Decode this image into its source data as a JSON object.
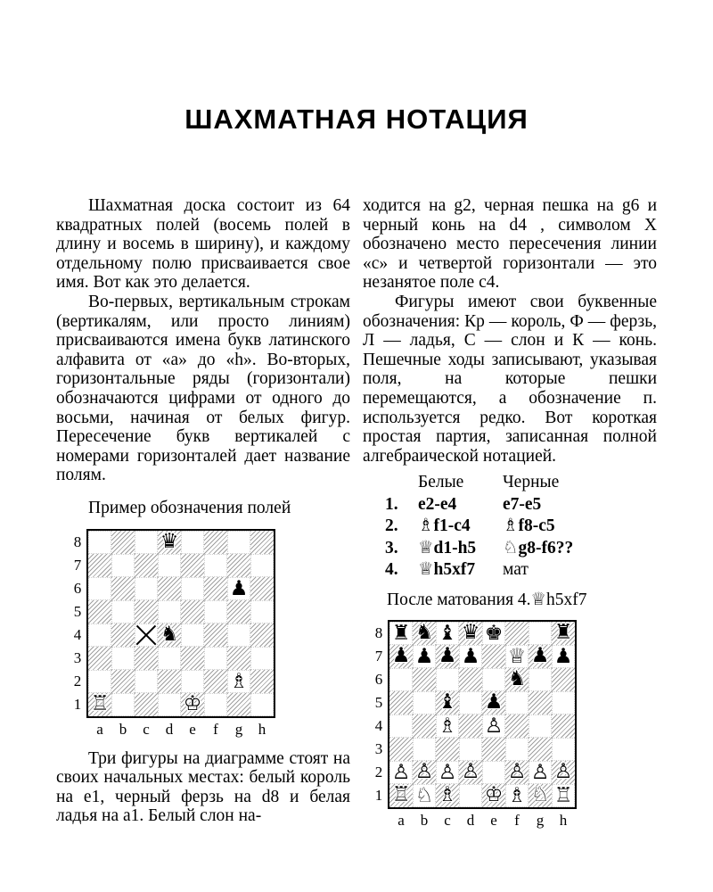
{
  "title": "ШАХМАТНАЯ НОТАЦИЯ",
  "left_column": {
    "para1": "Шахматная доска состоит из 64 квадратных полей (восемь полей в длину и восемь в ширину), и каждому отдельному полю присваивается свое имя. Вот как это делается.",
    "para2": "Во-первых, вертикальным строкам (вертикалям, или просто линиям) присваиваются имена букв латинского алфавита от «a» до «h». Во-вторых, горизонтальные ряды (горизонтали) обозначаются цифрами от одного до восьми, начиная от белых фигур. Пересечение букв вертикалей с номерами горизонталей дает название полям.",
    "diagram1_caption": "Пример обозначения полей",
    "para3": "Три фигуры на диаграмме стоят на своих начальных местах: белый король на e1, черный ферзь на d8 и белая ладья на a1. Белый слон на-"
  },
  "right_column": {
    "para1": "ходится на g2, черная пешка на g6 и черный конь на d4 , символом X обозначено место пересечения линии «с» и четвертой горизонтали — это незанятое поле c4.",
    "para2": "Фигуры имеют свои буквенные обозначения: Кр — король, Ф — ферзь, Л — ладья, С — слон и К — конь. Пешечные ходы записывают, указывая поля, на которые пешки перемещаются, а обозначение п. используется редко. Вот короткая простая партия, записанная полной алгебраической нотацией.",
    "diagram2_caption": "После матования 4.♕h5xf7"
  },
  "moves_table": {
    "white_header": "Белые",
    "black_header": "Черные",
    "rows": [
      {
        "num": "1.",
        "white": "e2-e4",
        "black": "e7-e5",
        "black_bold": true
      },
      {
        "num": "2.",
        "white": "♗f1-c4",
        "black": "♗f8-c5",
        "black_bold": true
      },
      {
        "num": "3.",
        "white": "♕d1-h5",
        "black": "♘g8-f6??",
        "black_bold": true
      },
      {
        "num": "4.",
        "white": "♕h5xf7",
        "black": "мат",
        "black_bold": false
      }
    ]
  },
  "diagram1": {
    "files": [
      "a",
      "b",
      "c",
      "d",
      "e",
      "f",
      "g",
      "h"
    ],
    "ranks": [
      "8",
      "7",
      "6",
      "5",
      "4",
      "3",
      "2",
      "1"
    ],
    "rows": [
      "...q....",
      "........",
      "......p.",
      "........",
      "..Xn....",
      "........",
      "......B.",
      "R...K..."
    ]
  },
  "diagram2": {
    "files": [
      "a",
      "b",
      "c",
      "d",
      "e",
      "f",
      "g",
      "h"
    ],
    "ranks": [
      "8",
      "7",
      "6",
      "5",
      "4",
      "3",
      "2",
      "1"
    ],
    "rows": [
      "rnbqk..r",
      "pppp.Qpp",
      ".....n..",
      "..b.p...",
      "..B.P...",
      "........",
      "PPPP.PPP",
      "RNB.KBNR"
    ]
  },
  "glyphs": {
    "K": "♔",
    "Q": "♕",
    "R": "♖",
    "B": "♗",
    "N": "♘",
    "P": "♙",
    "k": "♚",
    "q": "♛",
    "r": "♜",
    "b": "♝",
    "n": "♞",
    "p": "♟"
  },
  "colors": {
    "ink": "#000000",
    "paper": "#ffffff"
  }
}
